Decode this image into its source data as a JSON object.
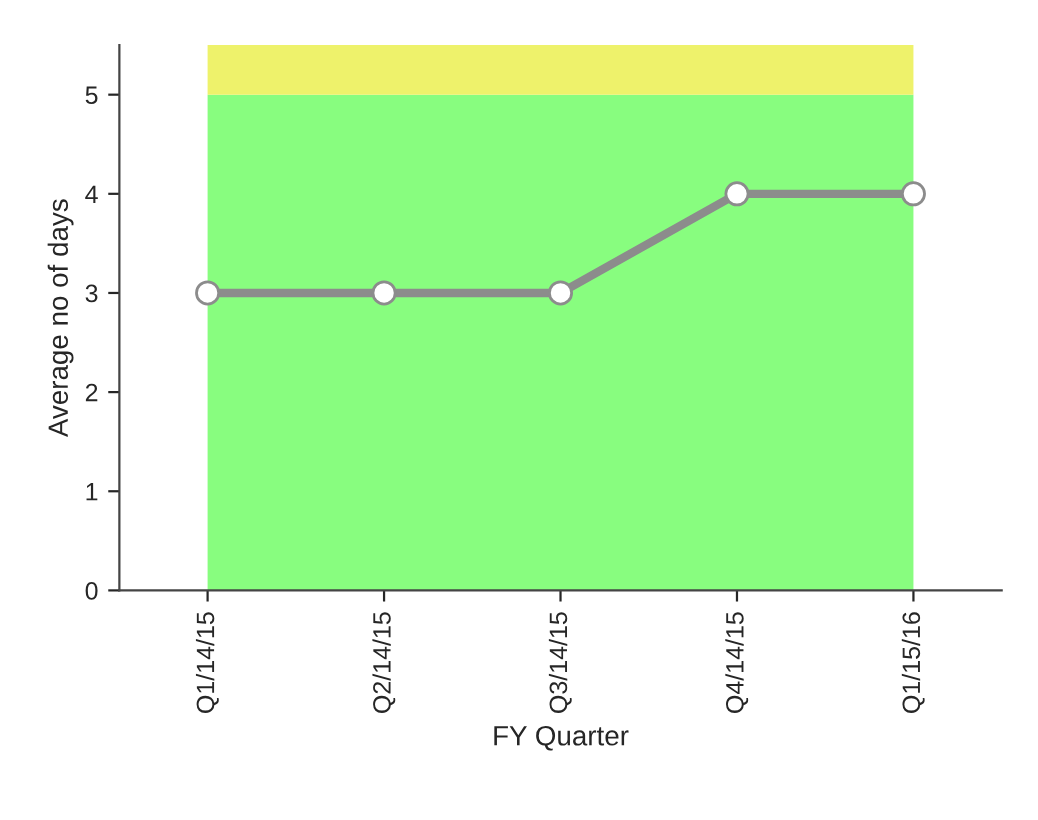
{
  "chart_data": {
    "type": "line",
    "xlabel": "FY Quarter",
    "ylabel": "Average no of days",
    "categories": [
      "Q1/14/15",
      "Q2/14/15",
      "Q3/14/15",
      "Q4/14/15",
      "Q1/15/16"
    ],
    "series": [
      {
        "color": "#8c8c8c",
        "values": [
          3,
          3,
          3,
          4,
          4
        ]
      }
    ],
    "ylim": [
      0,
      5.5
    ],
    "yticks": [
      0,
      1,
      2,
      3,
      4,
      5
    ],
    "marker": "circle",
    "line_style": "solid",
    "grid": false,
    "legend": false,
    "bands": [
      {
        "axis": "y",
        "from": 0,
        "to": 5,
        "color": "#88fd7f"
      },
      {
        "axis": "y",
        "from": 5,
        "to": 5.5,
        "color": "#eef26b"
      }
    ]
  }
}
